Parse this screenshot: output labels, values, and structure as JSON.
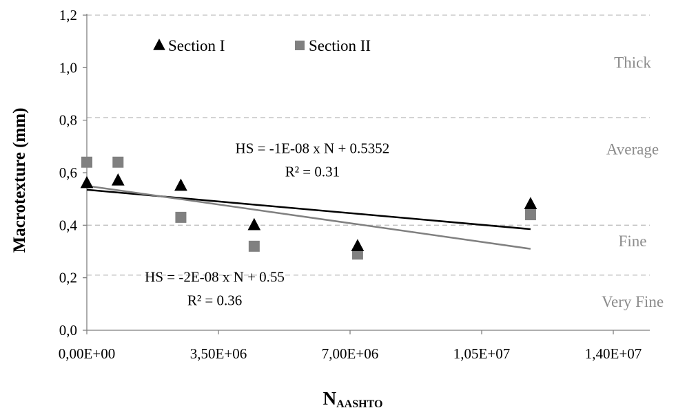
{
  "chart_data": {
    "type": "scatter",
    "title": "",
    "xlabel_main": "N",
    "xlabel_sub": "AASHTO",
    "ylabel": "Macrotexture (mm)",
    "xlim": [
      0,
      14000000
    ],
    "ylim": [
      0,
      1.2
    ],
    "x_ticks": [
      {
        "value": 0,
        "label": "0,00E+00"
      },
      {
        "value": 3500000,
        "label": "3,50E+06"
      },
      {
        "value": 7000000,
        "label": "7,00E+06"
      },
      {
        "value": 10500000,
        "label": "1,05E+07"
      },
      {
        "value": 14000000,
        "label": "1,40E+07"
      }
    ],
    "y_ticks": [
      {
        "value": 0,
        "label": "0,0"
      },
      {
        "value": 0.2,
        "label": "0,2"
      },
      {
        "value": 0.4,
        "label": "0,4"
      },
      {
        "value": 0.6,
        "label": "0,6"
      },
      {
        "value": 0.8,
        "label": "0,8"
      },
      {
        "value": 1.0,
        "label": "1,0"
      },
      {
        "value": 1.2,
        "label": "1,2"
      }
    ],
    "dashed_gridlines": [
      0.21,
      0.4,
      0.81,
      1.2
    ],
    "regions": [
      {
        "label": "Thick",
        "y": 1.02
      },
      {
        "label": "Average",
        "y": 0.69
      },
      {
        "label": "Fine",
        "y": 0.34
      },
      {
        "label": "Very Fine",
        "y": 0.11
      }
    ],
    "legend_position": "top-left",
    "series": [
      {
        "name": "Section I",
        "marker": "triangle",
        "color": "#000000",
        "points": [
          {
            "x": 0,
            "y": 0.56
          },
          {
            "x": 830000,
            "y": 0.57
          },
          {
            "x": 2500000,
            "y": 0.55
          },
          {
            "x": 4450000,
            "y": 0.4
          },
          {
            "x": 7200000,
            "y": 0.32
          },
          {
            "x": 11800000,
            "y": 0.48
          }
        ]
      },
      {
        "name": "Section II",
        "marker": "square",
        "color": "#808080",
        "points": [
          {
            "x": 0,
            "y": 0.64
          },
          {
            "x": 830000,
            "y": 0.64
          },
          {
            "x": 2500000,
            "y": 0.43
          },
          {
            "x": 4450000,
            "y": 0.32
          },
          {
            "x": 7200000,
            "y": 0.29
          },
          {
            "x": 11800000,
            "y": 0.44
          }
        ]
      }
    ],
    "trendlines": [
      {
        "series": "Section I",
        "color": "#000000",
        "x_range": [
          0,
          11800000
        ],
        "y_range": [
          0.535,
          0.385
        ],
        "equation": "HS = -1E-08 x N + 0.5352",
        "r2": "R² = 0.31",
        "label_x": 6000000,
        "label_y": 0.675
      },
      {
        "series": "Section II",
        "color": "#808080",
        "x_range": [
          0,
          11800000
        ],
        "y_range": [
          0.55,
          0.31
        ],
        "equation": "HS = -2E-08 x N + 0.55",
        "r2": "R² = 0.36",
        "label_x": 3400000,
        "label_y": 0.185
      }
    ]
  }
}
